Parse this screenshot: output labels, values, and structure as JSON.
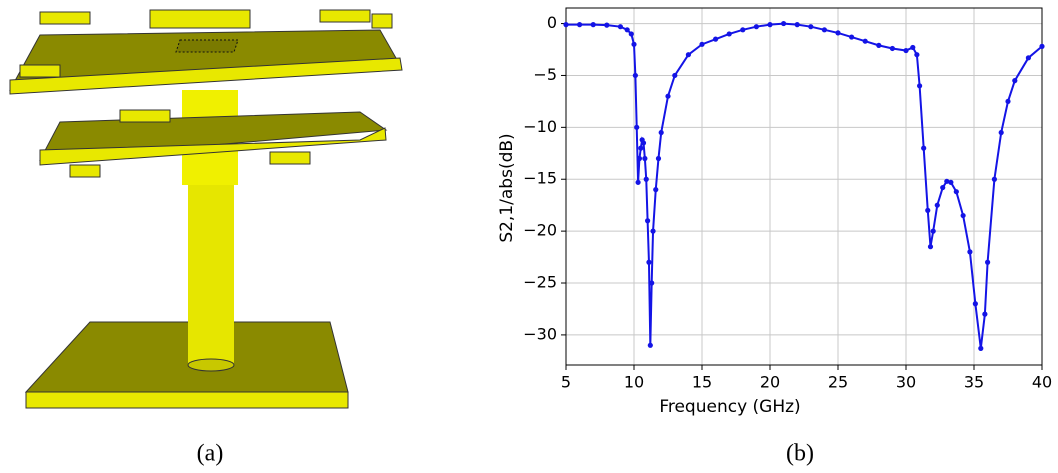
{
  "captions": [
    "(a)",
    "(b)"
  ],
  "chart_data": {
    "type": "line",
    "xlabel": "Frequency (GHz)",
    "ylabel": "S2,1/abs(dB)",
    "grid": true,
    "markers": true,
    "xlim": [
      5,
      40
    ],
    "ylim": [
      -32.9,
      1.5
    ],
    "xticks": [
      5,
      10,
      15,
      20,
      25,
      30,
      35,
      40
    ],
    "yticks": [
      0,
      {
        "value": -5,
        "label": "−5"
      },
      {
        "value": -10,
        "label": "−10"
      },
      {
        "value": -15,
        "label": "−15"
      },
      {
        "value": -20,
        "label": "−20"
      },
      {
        "value": -25,
        "label": "−25"
      },
      {
        "value": -30,
        "label": "−30"
      }
    ],
    "x": [
      5,
      6,
      7,
      8,
      9,
      9.5,
      9.8,
      10.0,
      10.1,
      10.2,
      10.3,
      10.4,
      10.5,
      10.6,
      10.7,
      10.8,
      10.9,
      11.0,
      11.1,
      11.2,
      11.3,
      11.4,
      11.6,
      11.8,
      12,
      12.5,
      13,
      14,
      15,
      16,
      17,
      18,
      19,
      20,
      21,
      22,
      23,
      24,
      25,
      26,
      27,
      28,
      29,
      30,
      30.5,
      30.8,
      31.0,
      31.3,
      31.6,
      31.8,
      32.0,
      32.3,
      32.7,
      33.0,
      33.3,
      33.7,
      34.2,
      34.7,
      35.1,
      35.5,
      35.8,
      36.0,
      36.5,
      37,
      37.5,
      38,
      39,
      40
    ],
    "series": [
      {
        "color": "#1414e6",
        "values": [
          -0.1,
          -0.1,
          -0.1,
          -0.15,
          -0.3,
          -0.6,
          -1.0,
          -2,
          -5,
          -10,
          -15.3,
          -13,
          -12,
          -11.2,
          -11.5,
          -13,
          -15,
          -19,
          -23,
          -31,
          -25,
          -20,
          -16,
          -13,
          -10.5,
          -7,
          -5,
          -3,
          -2,
          -1.5,
          -1,
          -0.6,
          -0.3,
          -0.1,
          0,
          -0.1,
          -0.3,
          -0.6,
          -0.9,
          -1.3,
          -1.7,
          -2.1,
          -2.4,
          -2.6,
          -2.3,
          -3,
          -6,
          -12,
          -18,
          -21.5,
          -20,
          -17.5,
          -15.8,
          -15.2,
          -15.3,
          -16.2,
          -18.5,
          -22,
          -27,
          -31.3,
          -28,
          -23,
          -15,
          -10.5,
          -7.5,
          -5.5,
          -3.3,
          -2.2
        ]
      }
    ]
  }
}
